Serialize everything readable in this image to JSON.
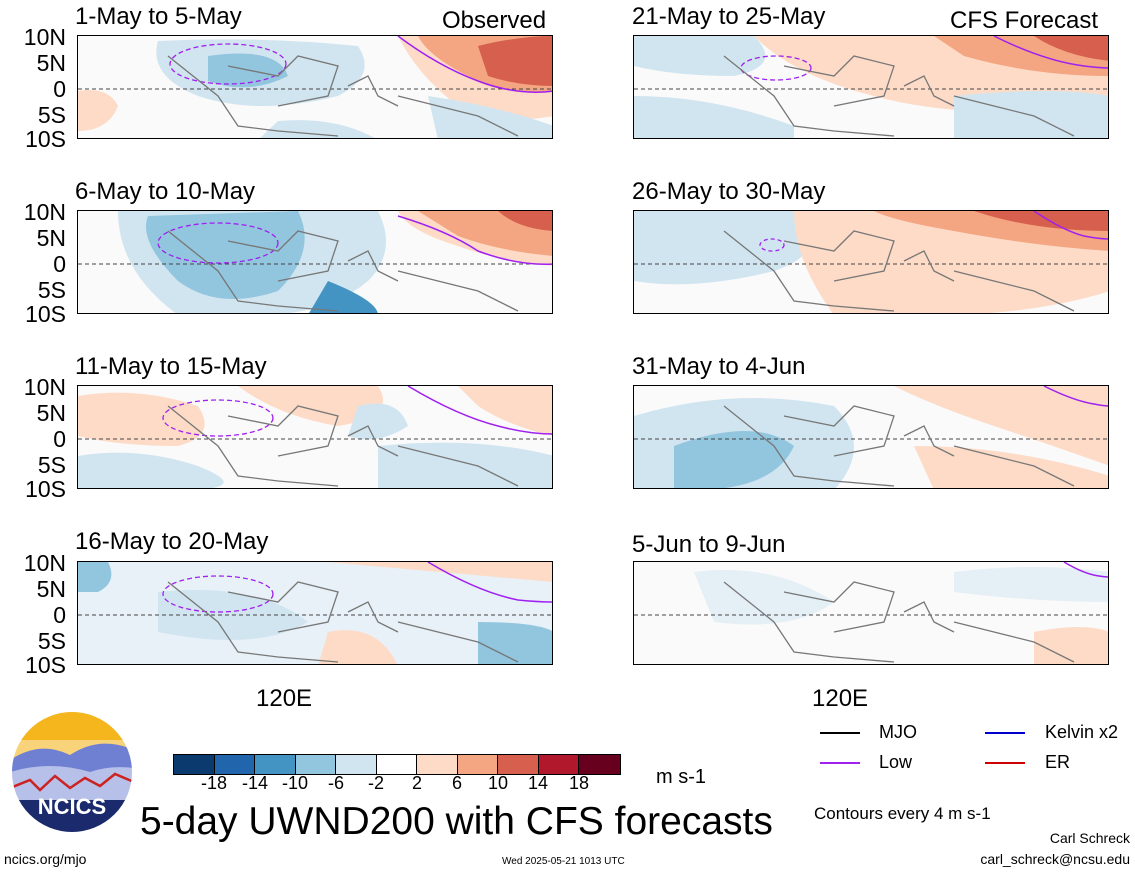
{
  "header": {
    "left_label": "Observed",
    "right_label": "CFS Forecast"
  },
  "panels": {
    "observed": [
      {
        "title": "1-May to 5-May"
      },
      {
        "title": "6-May to 10-May"
      },
      {
        "title": "11-May to 15-May"
      },
      {
        "title": "16-May to 20-May"
      }
    ],
    "forecast": [
      {
        "title": "21-May to 25-May"
      },
      {
        "title": "26-May to 30-May"
      },
      {
        "title": "31-May to 4-Jun"
      },
      {
        "title": "5-Jun to 9-Jun"
      }
    ]
  },
  "axes": {
    "lat_labels": [
      "10N",
      "5N",
      "0",
      "5S",
      "10S"
    ],
    "lon_label": "120E"
  },
  "colorbar": {
    "unit": "m s-1",
    "tick_labels": [
      "-18",
      "-14",
      "-10",
      "-6",
      "-2",
      "2",
      "6",
      "10",
      "14",
      "18"
    ],
    "colors": [
      "#0b3a6e",
      "#2166ac",
      "#4393c3",
      "#92c5de",
      "#d1e5f0",
      "#ffffff",
      "#fddbc7",
      "#f4a582",
      "#d6604d",
      "#b2182b",
      "#67001f"
    ]
  },
  "legend": {
    "items": [
      {
        "label": "MJO",
        "color": "#000000"
      },
      {
        "label": "Kelvin x2",
        "color": "#0000cc"
      },
      {
        "label": "Low",
        "color": "#a020f0"
      },
      {
        "label": "ER",
        "color": "#cc0000"
      }
    ],
    "contour_note": "Contours every 4 m s-1"
  },
  "title": "5-day UWND200 with CFS forecasts",
  "logo_text": "NCICS",
  "footer": {
    "url": "ncics.org/mjo",
    "timestamp": "Wed 2025-05-21 1013 UTC",
    "author": "Carl Schreck",
    "email": "carl_schreck@ncsu.edu"
  }
}
